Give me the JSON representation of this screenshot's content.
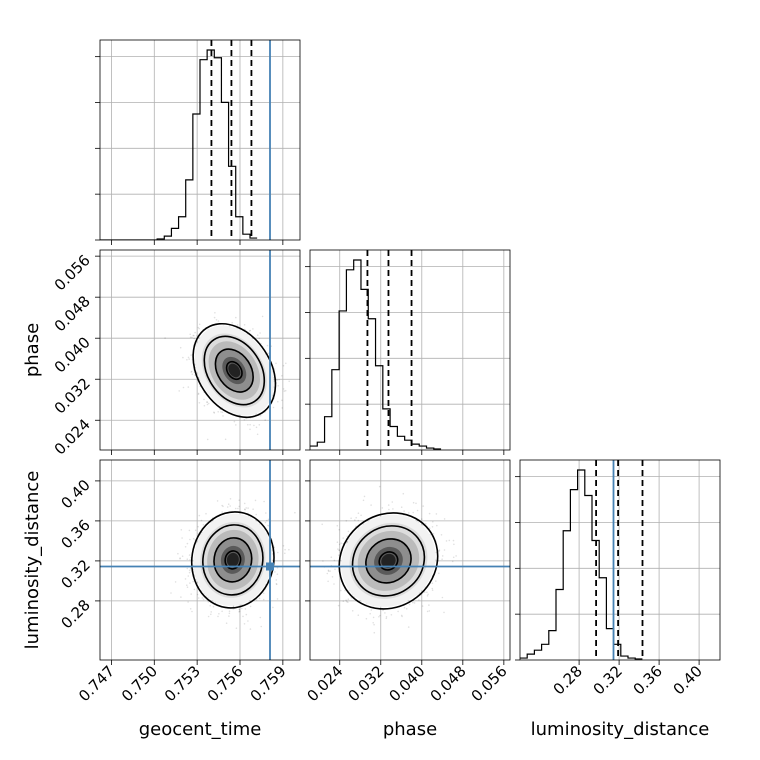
{
  "chart_data": {
    "type": "corner",
    "parameters": [
      {
        "name": "geocent_time",
        "label": "geocent_time",
        "range": [
          0.7462,
          0.7602
        ],
        "ticks": [
          0.747,
          0.75,
          0.753,
          0.756,
          0.759
        ],
        "tick_labels": [
          "0.747",
          "0.750",
          "0.753",
          "0.756",
          "0.759"
        ],
        "truth": 0.7581,
        "quantiles": [
          0.754,
          0.7554,
          0.7568
        ],
        "hist_start": 0.7462,
        "hist_bin": 0.0005,
        "hist_counts": [
          0,
          0,
          0,
          0,
          0,
          0,
          0,
          0,
          0.5,
          2,
          6,
          12,
          31,
          65,
          93,
          98,
          94,
          71,
          38,
          12,
          3,
          1
        ]
      },
      {
        "name": "phase",
        "label": "phase",
        "range": [
          0.0182,
          0.0572
        ],
        "ticks": [
          0.024,
          0.032,
          0.04,
          0.048,
          0.056
        ],
        "tick_labels": [
          "0.024",
          "0.032",
          "0.040",
          "0.048",
          "0.056"
        ],
        "truth": null,
        "quantiles": [
          0.0294,
          0.0335,
          0.038
        ],
        "hist_start": 0.0182,
        "hist_bin": 0.00142,
        "hist_counts": [
          2,
          4,
          17,
          41,
          71,
          92,
          97,
          82,
          67,
          43,
          21,
          12,
          7,
          5,
          3,
          2,
          1,
          0.5
        ]
      },
      {
        "name": "luminosity_distance",
        "label": "luminosity_distance",
        "range": [
          0.2209,
          0.4209
        ],
        "ticks": [
          0.28,
          0.32,
          0.36,
          0.4
        ],
        "tick_labels": [
          "0.28",
          "0.32",
          "0.36",
          "0.40"
        ],
        "truth": 0.3144,
        "quantiles": [
          0.297,
          0.319,
          0.3434
        ],
        "hist_start": 0.2209,
        "hist_bin": 0.0072,
        "hist_counts": [
          1,
          3,
          5,
          8,
          15,
          36,
          66,
          87,
          97,
          84,
          61,
          42,
          16,
          8,
          2,
          1,
          0.5
        ]
      }
    ],
    "posteriors_2d": [
      {
        "x": "geocent_time",
        "y": "phase",
        "center": [
          0.7556,
          0.0337
        ],
        "sd": [
          0.0012,
          0.0038
        ],
        "rho": -0.3
      },
      {
        "x": "geocent_time",
        "y": "luminosity_distance",
        "center": [
          0.7555,
          0.321
        ],
        "sd": [
          0.0012,
          0.02
        ],
        "rho": 0.05
      },
      {
        "x": "phase",
        "y": "luminosity_distance",
        "center": [
          0.0335,
          0.32
        ],
        "sd": [
          0.004,
          0.02
        ],
        "rho": 0.1
      }
    ],
    "grid": true
  }
}
